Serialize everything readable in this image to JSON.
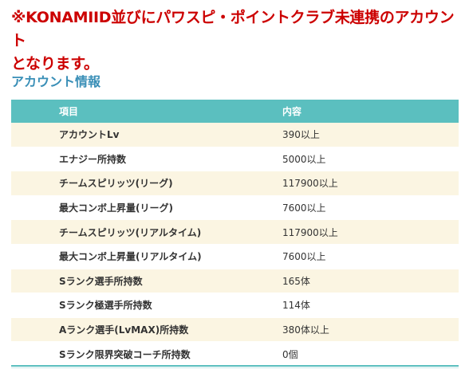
{
  "notice": {
    "line1": "※KONAMIID並びにパワスピ・ポイントクラブ未連携のアカウント",
    "line2": "となります。"
  },
  "section": {
    "title": "アカウント情報"
  },
  "table": {
    "headers": [
      "項目",
      "内容"
    ],
    "rows": [
      {
        "label": "アカウントLv",
        "value": "390以上"
      },
      {
        "label": "エナジー所持数",
        "value": "5000以上"
      },
      {
        "label": "チームスピリッツ(リーグ)",
        "value": "117900以上"
      },
      {
        "label": "最大コンボ上昇量(リーグ)",
        "value": "7600以上"
      },
      {
        "label": "チームスピリッツ(リアルタイム)",
        "value": "117900以上"
      },
      {
        "label": "最大コンボ上昇量(リアルタイム)",
        "value": "7600以上"
      },
      {
        "label": "Sランク選手所持数",
        "value": "165体"
      },
      {
        "label": "Sランク極選手所持数",
        "value": "114体"
      },
      {
        "label": "Aランク選手(LvMAX)所持数",
        "value": "380体以上"
      },
      {
        "label": "Sランク限界突破コーチ所持数",
        "value": "0個"
      }
    ]
  },
  "colors": {
    "notice": "#cc0000",
    "title": "#3a8fb7",
    "header_bg": "#5bbfbf",
    "row_alt_bg": "#fbf5e2"
  }
}
